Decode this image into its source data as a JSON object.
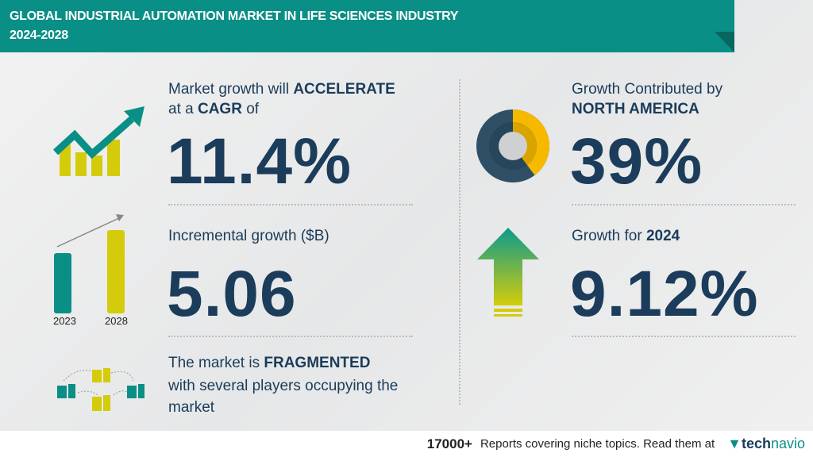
{
  "header": {
    "title_line1": "GLOBAL INDUSTRIAL AUTOMATION MARKET IN LIFE SCIENCES INDUSTRY",
    "title_line2": "2024-2028"
  },
  "cagr": {
    "line1_prefix": "Market growth will ",
    "line1_bold": "ACCELERATE",
    "line2_prefix": "at a ",
    "line2_bold": "CAGR",
    "line2_suffix": " of",
    "value": "11.4%",
    "icon": "trend-up-bar-chart-icon"
  },
  "incremental": {
    "label": "Incremental growth ($B)",
    "value": "5.06",
    "bar_years": [
      "2023",
      "2028"
    ],
    "icon": "bar-comparison-icon"
  },
  "market": {
    "line1_prefix": "The market is ",
    "line1_bold": "FRAGMENTED",
    "line2": "with several players occupying the",
    "line3": "market",
    "icon": "buildings-network-icon"
  },
  "region": {
    "line1": "Growth Contributed by",
    "line2": "NORTH AMERICA",
    "value": "39%",
    "share_percent": 39,
    "icon": "donut-chart-icon"
  },
  "yoy": {
    "label_prefix": "Growth for ",
    "label_bold": "2024",
    "value": "9.12%",
    "icon": "up-arrow-icon"
  },
  "footer": {
    "count": "17000+",
    "text": "Reports covering niche topics. Read them at",
    "brand_prefix": "tech",
    "brand_suffix": "navio"
  },
  "colors": {
    "teal": "#0a8f86",
    "navy": "#1b3c5a",
    "lime": "#d4cc0a",
    "amber": "#f7b900",
    "slate": "#2f4f66"
  }
}
